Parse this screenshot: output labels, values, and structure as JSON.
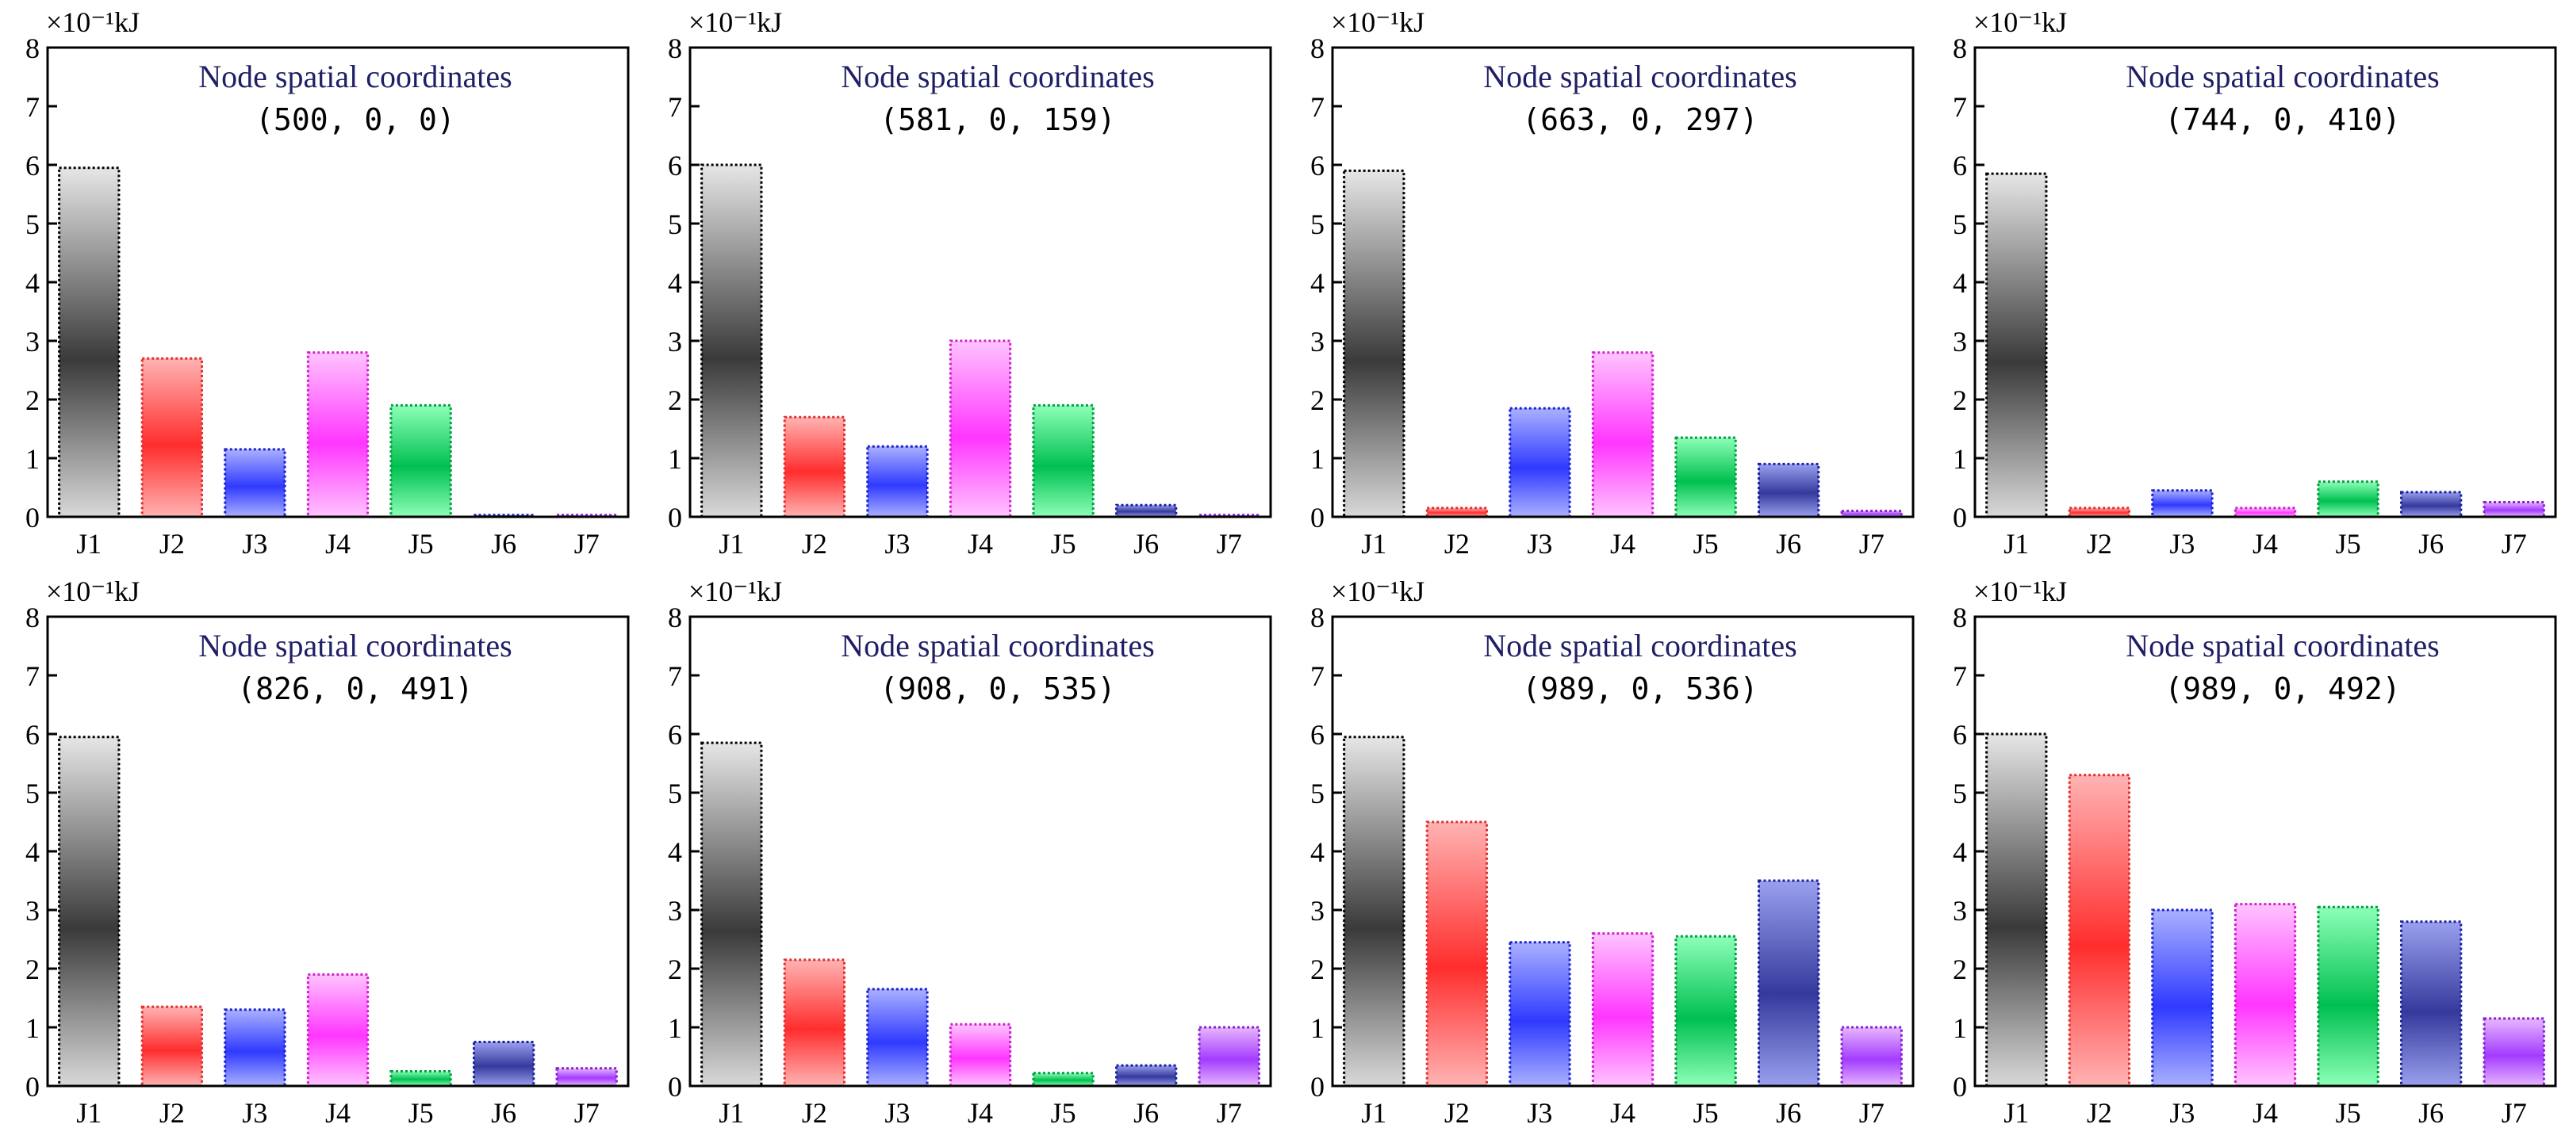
{
  "figure": {
    "unit_prefix": "×10",
    "unit_exp": "−1",
    "unit_suffix": "kJ"
  },
  "series_colors": {
    "J1": [
      "#e6e6e6",
      "#3a3a3a",
      "#d9d9d9"
    ],
    "J2": [
      "#ffb3b3",
      "#ff2d2d",
      "#ffb3b3"
    ],
    "J3": [
      "#aab0ff",
      "#2f3aff",
      "#aab0ff"
    ],
    "J4": [
      "#ffc4ff",
      "#ff36ff",
      "#ffc4ff"
    ],
    "J5": [
      "#8dffb8",
      "#00c050",
      "#8dffb8"
    ],
    "J6": [
      "#9aa0ee",
      "#35399c",
      "#9aa0ee"
    ],
    "J7": [
      "#e7b6ff",
      "#a33bff",
      "#e7b6ff"
    ]
  },
  "series_stroke": {
    "J1": "#000000",
    "J2": "#e03030",
    "J3": "#1a22d0",
    "J4": "#d020d0",
    "J5": "#00a040",
    "J6": "#1a22a0",
    "J7": "#8a20d0"
  },
  "chart_data": [
    {
      "type": "bar",
      "title": "Node spatial coordinates",
      "coordinates": "(500, 0, 0)",
      "categories": [
        "J1",
        "J2",
        "J3",
        "J4",
        "J5",
        "J6",
        "J7"
      ],
      "values": [
        5.95,
        2.7,
        1.15,
        2.8,
        1.9,
        0.03,
        0.03
      ],
      "ylim": [
        0,
        8
      ],
      "yticks": [
        "0",
        "1",
        "2",
        "3",
        "4",
        "5",
        "6",
        "7",
        "8"
      ],
      "ylabel": "×10⁻¹kJ"
    },
    {
      "type": "bar",
      "title": "Node spatial coordinates",
      "coordinates": "(581, 0, 159)",
      "categories": [
        "J1",
        "J2",
        "J3",
        "J4",
        "J5",
        "J6",
        "J7"
      ],
      "values": [
        6.0,
        1.7,
        1.2,
        3.0,
        1.9,
        0.2,
        0.03
      ],
      "ylim": [
        0,
        8
      ],
      "yticks": [
        "0",
        "1",
        "2",
        "3",
        "4",
        "5",
        "6",
        "7",
        "8"
      ],
      "ylabel": "×10⁻¹kJ"
    },
    {
      "type": "bar",
      "title": "Node spatial coordinates",
      "coordinates": "(663, 0, 297)",
      "categories": [
        "J1",
        "J2",
        "J3",
        "J4",
        "J5",
        "J6",
        "J7"
      ],
      "values": [
        5.9,
        0.15,
        1.85,
        2.8,
        1.35,
        0.9,
        0.1
      ],
      "ylim": [
        0,
        8
      ],
      "yticks": [
        "0",
        "1",
        "2",
        "3",
        "4",
        "5",
        "6",
        "7",
        "8"
      ],
      "ylabel": "×10⁻¹kJ"
    },
    {
      "type": "bar",
      "title": "Node spatial coordinates",
      "coordinates": "(744, 0, 410)",
      "categories": [
        "J1",
        "J2",
        "J3",
        "J4",
        "J5",
        "J6",
        "J7"
      ],
      "values": [
        5.85,
        0.15,
        0.45,
        0.15,
        0.6,
        0.42,
        0.25
      ],
      "ylim": [
        0,
        8
      ],
      "yticks": [
        "0",
        "1",
        "2",
        "3",
        "4",
        "5",
        "6",
        "7",
        "8"
      ],
      "ylabel": "×10⁻¹kJ"
    },
    {
      "type": "bar",
      "title": "Node spatial coordinates",
      "coordinates": "(826, 0, 491)",
      "categories": [
        "J1",
        "J2",
        "J3",
        "J4",
        "J5",
        "J6",
        "J7"
      ],
      "values": [
        5.95,
        1.35,
        1.3,
        1.9,
        0.25,
        0.75,
        0.3
      ],
      "ylim": [
        0,
        8
      ],
      "yticks": [
        "0",
        "1",
        "2",
        "3",
        "4",
        "5",
        "6",
        "7",
        "8"
      ],
      "ylabel": "×10⁻¹kJ"
    },
    {
      "type": "bar",
      "title": "Node spatial coordinates",
      "coordinates": "(908, 0, 535)",
      "categories": [
        "J1",
        "J2",
        "J3",
        "J4",
        "J5",
        "J6",
        "J7"
      ],
      "values": [
        5.85,
        2.15,
        1.65,
        1.05,
        0.22,
        0.35,
        1.0
      ],
      "ylim": [
        0,
        8
      ],
      "yticks": [
        "0",
        "1",
        "2",
        "3",
        "4",
        "5",
        "6",
        "7",
        "8"
      ],
      "ylabel": "×10⁻¹kJ"
    },
    {
      "type": "bar",
      "title": "Node spatial coordinates",
      "coordinates": "(989, 0, 536)",
      "categories": [
        "J1",
        "J2",
        "J3",
        "J4",
        "J5",
        "J6",
        "J7"
      ],
      "values": [
        5.95,
        4.5,
        2.45,
        2.6,
        2.55,
        3.5,
        1.0
      ],
      "ylim": [
        0,
        8
      ],
      "yticks": [
        "0",
        "1",
        "2",
        "3",
        "4",
        "5",
        "6",
        "7",
        "8"
      ],
      "ylabel": "×10⁻¹kJ"
    },
    {
      "type": "bar",
      "title": "Node spatial coordinates",
      "coordinates": "(989, 0, 492)",
      "categories": [
        "J1",
        "J2",
        "J3",
        "J4",
        "J5",
        "J6",
        "J7"
      ],
      "values": [
        6.0,
        5.3,
        3.0,
        3.1,
        3.05,
        2.8,
        1.15
      ],
      "ylim": [
        0,
        8
      ],
      "yticks": [
        "0",
        "1",
        "2",
        "3",
        "4",
        "5",
        "6",
        "7",
        "8"
      ],
      "ylabel": "×10⁻¹kJ"
    }
  ]
}
